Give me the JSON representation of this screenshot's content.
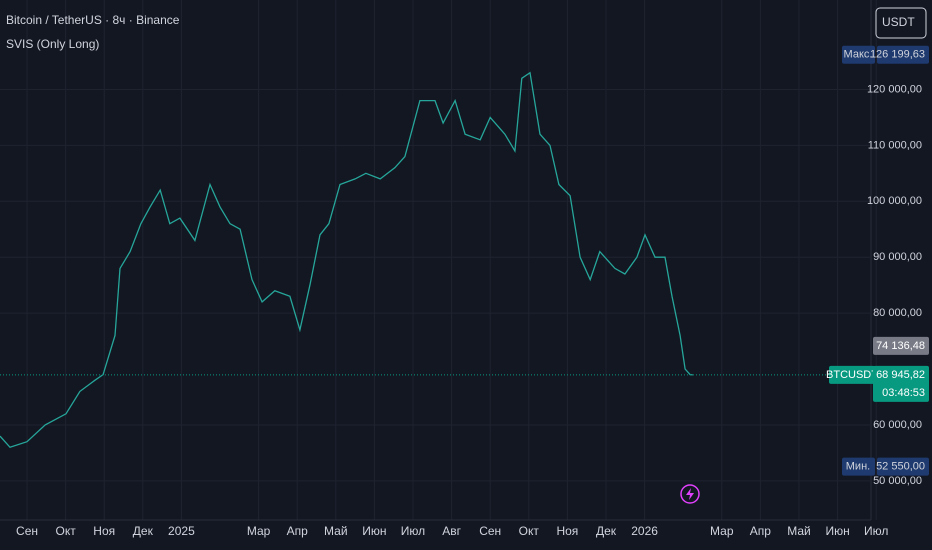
{
  "chart_data": {
    "type": "line",
    "title": "Bitcoin / TetherUS · 8ч · Binance",
    "subtitle": "SVIS (Only Long)",
    "currency": "USDT",
    "x": [
      -0.7,
      -0.44,
      0,
      0.47,
      1.01,
      1.37,
      1.76,
      1.97,
      2.28,
      2.41,
      2.67,
      2.95,
      3.19,
      3.45,
      3.7,
      3.96,
      4.35,
      4.74,
      5.0,
      5.26,
      5.52,
      5.83,
      6.09,
      6.42,
      6.81,
      7.07,
      7.33,
      7.59,
      7.82,
      8.11,
      8.5,
      8.78,
      9.15,
      9.53,
      9.79,
      10.18,
      10.57,
      10.78,
      11.09,
      11.35,
      11.74,
      12.0,
      12.38,
      12.64,
      12.82,
      13.03,
      13.29,
      13.55,
      13.78,
      14.07,
      14.33,
      14.59,
      14.84,
      15.23,
      15.49,
      15.8,
      16.01,
      16.27,
      16.53,
      16.71,
      16.92,
      17.05,
      17.18,
      17.25
    ],
    "series": [
      {
        "name": "BTCUSDT",
        "color": "#26a69a",
        "values": [
          58000,
          56000,
          57000,
          60000,
          62000,
          66000,
          68000,
          69000,
          76000,
          88000,
          91000,
          96000,
          99000,
          102000,
          96000,
          97000,
          93000,
          103000,
          99000,
          96000,
          95000,
          86000,
          82000,
          84000,
          83000,
          77000,
          85000,
          94000,
          96000,
          103000,
          104000,
          105000,
          104000,
          106000,
          108000,
          118000,
          118000,
          114000,
          118000,
          112000,
          111000,
          115000,
          112000,
          109000,
          122000,
          123000,
          112000,
          110000,
          103000,
          101000,
          90000,
          86000,
          91000,
          88000,
          87000,
          90000,
          94000,
          90000,
          90000,
          83000,
          76000,
          70000,
          69000,
          68945.82
        ]
      }
    ],
    "xlim": [
      -0.7,
      21.84
    ],
    "ylim": [
      43000,
      136000
    ],
    "xticks": [
      {
        "value": 0,
        "label": "Сен"
      },
      {
        "value": 1,
        "label": "Окт"
      },
      {
        "value": 2,
        "label": "Ноя"
      },
      {
        "value": 3,
        "label": "Дек"
      },
      {
        "value": 4,
        "label": "2025"
      },
      {
        "value": 6,
        "label": "Мар"
      },
      {
        "value": 7,
        "label": "Апр"
      },
      {
        "value": 8,
        "label": "Май"
      },
      {
        "value": 9,
        "label": "Июн"
      },
      {
        "value": 10,
        "label": "Июл"
      },
      {
        "value": 11,
        "label": "Авг"
      },
      {
        "value": 12,
        "label": "Сен"
      },
      {
        "value": 13,
        "label": "Окт"
      },
      {
        "value": 14,
        "label": "Ноя"
      },
      {
        "value": 15,
        "label": "Дек"
      },
      {
        "value": 16,
        "label": "2026"
      },
      {
        "value": 18,
        "label": "Мар"
      },
      {
        "value": 19,
        "label": "Апр"
      },
      {
        "value": 20,
        "label": "Май"
      },
      {
        "value": 21,
        "label": "Июн"
      },
      {
        "value": 22,
        "label": "Июл"
      }
    ],
    "yticks": [
      {
        "value": 120000,
        "label": "120 000,00"
      },
      {
        "value": 110000,
        "label": "110 000,00"
      },
      {
        "value": 100000,
        "label": "100 000,00"
      },
      {
        "value": 90000,
        "label": "90 000,00"
      },
      {
        "value": 80000,
        "label": "80 000,00"
      },
      {
        "value": 60000,
        "label": "60 000,00"
      },
      {
        "value": 50000,
        "label": "50 000,00"
      }
    ],
    "grid": true,
    "max": {
      "name": "Макс.",
      "value": 126199.63,
      "label": "126 199,63"
    },
    "min": {
      "name": "Мин.",
      "value": 52550,
      "label": "52 550,00"
    },
    "level": {
      "value": 74136.48,
      "label": "74 136,48"
    },
    "last_price": {
      "value": 68945.82,
      "label": "68 945,82"
    },
    "countdown": "03:48:53"
  }
}
